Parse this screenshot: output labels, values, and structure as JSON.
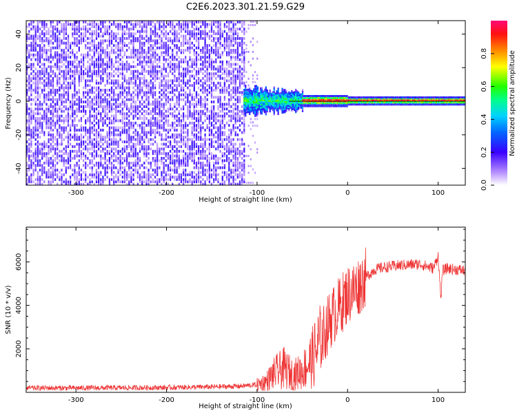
{
  "title": "C2E6.2023.301.21.59.G29",
  "chart_data": [
    {
      "type": "heatmap",
      "xlabel": "Height of straight line (km)",
      "ylabel": "Frequency (Hz)",
      "xlim": [
        -355,
        130
      ],
      "ylim": [
        -50,
        48
      ],
      "xticks": [
        -300,
        -200,
        -100,
        0,
        100
      ],
      "yticks": [
        -40,
        -20,
        0,
        20,
        40
      ],
      "colorbar": {
        "label": "Normalized spectral amplitude",
        "range": [
          0,
          1
        ],
        "ticks": [
          "0.0",
          "0.2",
          "0.4",
          "0.6",
          "0.8"
        ],
        "tick_values": [
          0.0,
          0.2,
          0.4,
          0.6,
          0.8
        ],
        "colors": [
          "#ffffff",
          "#8a2be2",
          "#3a00ff",
          "#00aaff",
          "#00ff99",
          "#33ff00",
          "#ffff00",
          "#ff8800",
          "#ff0000",
          "#ff1177"
        ]
      },
      "description_regions": [
        {
          "x_range": [
            -355,
            -115
          ],
          "freq_range": [
            -50,
            48
          ],
          "level": "low (0.1-0.3, noise)"
        },
        {
          "x_range": [
            -115,
            -50
          ],
          "freq_range": [
            -10,
            8
          ],
          "level": "0.3-0.6 (spread signal)"
        },
        {
          "x_range": [
            -50,
            130
          ],
          "freq_range": [
            -2,
            2
          ],
          "level": "0.7-1.0 (narrow carrier)"
        }
      ]
    },
    {
      "type": "line",
      "xlabel": "Height of straight line (km)",
      "ylabel": "SNR (10 * v/v)",
      "xlim": [
        -355,
        130
      ],
      "ylim": [
        0,
        7600
      ],
      "xticks": [
        -300,
        -200,
        -100,
        0,
        100
      ],
      "yticks": [
        2000,
        4000,
        6000
      ],
      "series": [
        {
          "color": "#ee3333",
          "x": [
            -355,
            -300,
            -250,
            -200,
            -150,
            -120,
            -100,
            -90,
            -80,
            -70,
            -60,
            -50,
            -40,
            -30,
            -20,
            -10,
            0,
            10,
            20,
            30,
            40,
            60,
            80,
            95,
            100,
            103,
            105,
            110,
            120,
            130
          ],
          "y": [
            200,
            200,
            210,
            220,
            250,
            280,
            350,
            500,
            900,
            1100,
            800,
            1000,
            1500,
            2300,
            3300,
            3900,
            4500,
            4800,
            5300,
            5650,
            5750,
            5850,
            5900,
            5700,
            6300,
            4300,
            5600,
            5700,
            5650,
            5600
          ]
        }
      ]
    }
  ]
}
